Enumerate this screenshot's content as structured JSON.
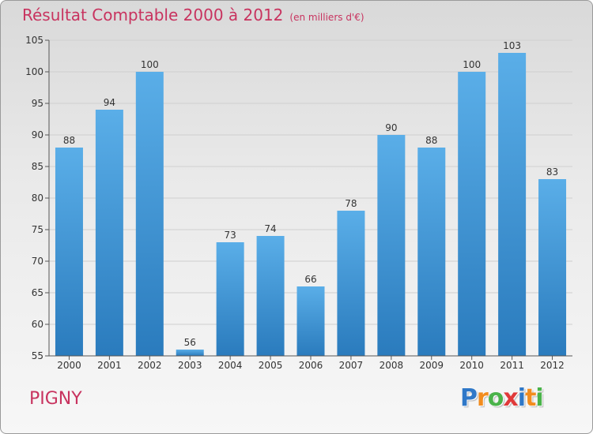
{
  "title": "Résultat Comptable 2000 à 2012",
  "subtitle": "(en milliers d'€)",
  "town": "PIGNY",
  "logo": {
    "letters": [
      "P",
      "r",
      "o",
      "x",
      "i",
      "t",
      "i"
    ],
    "colors": [
      "#2f78c8",
      "#f28c1e",
      "#4ab34a",
      "#e03a3a",
      "#2f78c8",
      "#f28c1e",
      "#4ab34a"
    ]
  },
  "colors": {
    "bar_light": "#5aaee8",
    "bar_dark": "#2a7bbd",
    "accent": "#c8335f"
  },
  "chart_data": {
    "type": "bar",
    "categories": [
      "2000",
      "2001",
      "2002",
      "2003",
      "2004",
      "2005",
      "2006",
      "2007",
      "2008",
      "2009",
      "2010",
      "2011",
      "2012"
    ],
    "values": [
      88,
      94,
      100,
      56,
      73,
      74,
      66,
      78,
      90,
      88,
      100,
      103,
      83
    ],
    "ylim": [
      55,
      105
    ],
    "yticks": [
      55,
      60,
      65,
      70,
      75,
      80,
      85,
      90,
      95,
      100,
      105
    ],
    "grid": true,
    "data_labels": true
  }
}
